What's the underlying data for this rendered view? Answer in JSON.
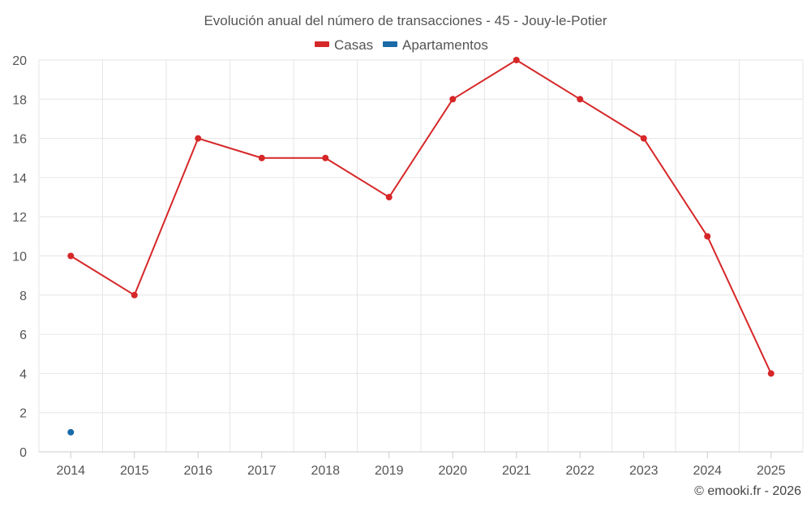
{
  "chart_data": {
    "type": "line",
    "title": "Evolución anual del número de transacciones - 45 - Jouy-le-Potier",
    "categories": [
      "2014",
      "2015",
      "2016",
      "2017",
      "2018",
      "2019",
      "2020",
      "2021",
      "2022",
      "2023",
      "2024",
      "2025"
    ],
    "series": [
      {
        "name": "Casas",
        "color": "#d62728",
        "values": [
          10,
          8,
          16,
          15,
          15,
          13,
          18,
          20,
          18,
          16,
          11,
          4
        ]
      },
      {
        "name": "Apartamentos",
        "color": "#1a6aa8",
        "values": [
          1,
          null,
          null,
          null,
          null,
          null,
          null,
          null,
          null,
          null,
          null,
          null
        ]
      }
    ],
    "ylim": [
      0,
      20
    ],
    "yticks": [
      0,
      2,
      4,
      6,
      8,
      10,
      12,
      14,
      16,
      18,
      20
    ],
    "xlabel": "",
    "ylabel": "",
    "grid": true,
    "legend_position": "top-center"
  },
  "credit": "© emooki.fr - 2026"
}
